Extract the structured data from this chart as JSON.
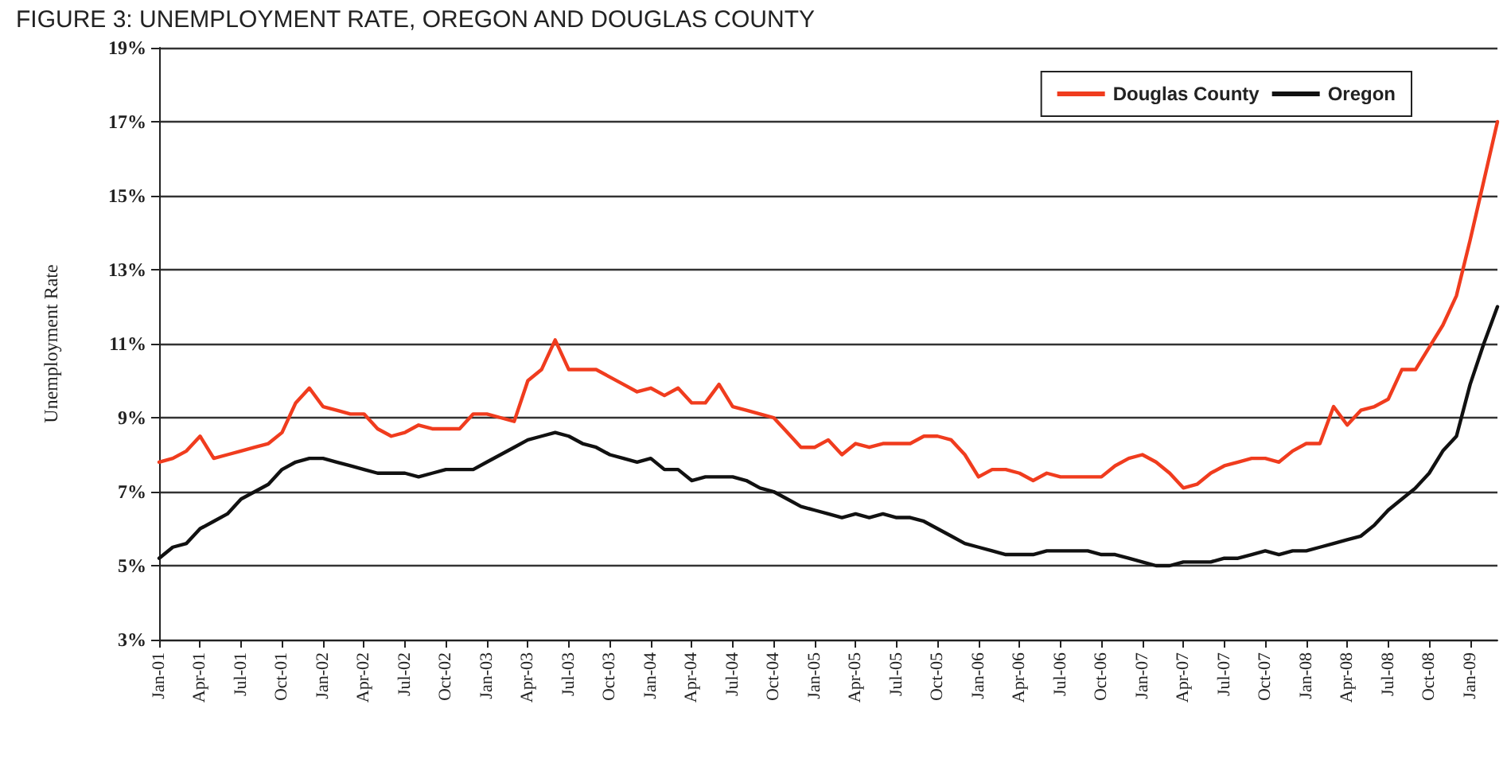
{
  "chart_data": {
    "type": "line",
    "title": "FIGURE 3: UNEMPLOYMENT RATE, OREGON AND DOUGLAS COUNTY",
    "ylabel": "Unemployment Rate",
    "categories": [
      "Jan-01",
      null,
      null,
      "Apr-01",
      null,
      null,
      "Jul-01",
      null,
      null,
      "Oct-01",
      null,
      null,
      "Jan-02",
      null,
      null,
      "Apr-02",
      null,
      null,
      "Jul-02",
      null,
      null,
      "Oct-02",
      null,
      null,
      "Jan-03",
      null,
      null,
      "Apr-03",
      null,
      null,
      "Jul-03",
      null,
      null,
      "Oct-03",
      null,
      null,
      "Jan-04",
      null,
      null,
      "Apr-04",
      null,
      null,
      "Jul-04",
      null,
      null,
      "Oct-04",
      null,
      null,
      "Jan-05",
      null,
      null,
      "Apr-05",
      null,
      null,
      "Jul-05",
      null,
      null,
      "Oct-05",
      null,
      null,
      "Jan-06",
      null,
      null,
      "Apr-06",
      null,
      null,
      "Jul-06",
      null,
      null,
      "Oct-06",
      null,
      null,
      "Jan-07",
      null,
      null,
      "Apr-07",
      null,
      null,
      "Jul-07",
      null,
      null,
      "Oct-07",
      null,
      null,
      "Jan-08",
      null,
      null,
      "Apr-08",
      null,
      null,
      "Jul-08",
      null,
      null,
      "Oct-08",
      null,
      null,
      "Jan-09",
      null,
      null
    ],
    "series": [
      {
        "name": "Douglas County",
        "color": "#f03c1e",
        "values": [
          7.8,
          7.9,
          8.1,
          8.5,
          7.9,
          8.0,
          8.1,
          8.2,
          8.3,
          8.6,
          9.4,
          9.8,
          9.3,
          9.2,
          9.1,
          9.1,
          8.7,
          8.5,
          8.6,
          8.8,
          8.7,
          8.7,
          8.7,
          9.1,
          9.1,
          9.0,
          8.9,
          10.0,
          10.3,
          11.1,
          10.3,
          10.3,
          10.3,
          10.1,
          9.9,
          9.7,
          9.8,
          9.6,
          9.8,
          9.4,
          9.4,
          9.9,
          9.3,
          9.2,
          9.1,
          9.0,
          8.6,
          8.2,
          8.2,
          8.4,
          8.0,
          8.3,
          8.2,
          8.3,
          8.3,
          8.3,
          8.5,
          8.5,
          8.4,
          8.0,
          7.4,
          7.6,
          7.6,
          7.5,
          7.3,
          7.5,
          7.4,
          7.4,
          7.4,
          7.4,
          7.7,
          7.9,
          8.0,
          7.8,
          7.5,
          7.1,
          7.2,
          7.5,
          7.7,
          7.8,
          7.9,
          7.9,
          7.8,
          8.1,
          8.3,
          8.3,
          9.3,
          8.8,
          9.2,
          9.3,
          9.5,
          10.3,
          10.3,
          10.9,
          11.5,
          12.3,
          13.8,
          15.4,
          17.0
        ]
      },
      {
        "name": "Oregon",
        "color": "#111111",
        "values": [
          5.2,
          5.5,
          5.6,
          6.0,
          6.2,
          6.4,
          6.8,
          7.0,
          7.2,
          7.6,
          7.8,
          7.9,
          7.9,
          7.8,
          7.7,
          7.6,
          7.5,
          7.5,
          7.5,
          7.4,
          7.5,
          7.6,
          7.6,
          7.6,
          7.8,
          8.0,
          8.2,
          8.4,
          8.5,
          8.6,
          8.5,
          8.3,
          8.2,
          8.0,
          7.9,
          7.8,
          7.9,
          7.6,
          7.6,
          7.3,
          7.4,
          7.4,
          7.4,
          7.3,
          7.1,
          7.0,
          6.8,
          6.6,
          6.5,
          6.4,
          6.3,
          6.4,
          6.3,
          6.4,
          6.3,
          6.3,
          6.2,
          6.0,
          5.8,
          5.6,
          5.5,
          5.4,
          5.3,
          5.3,
          5.3,
          5.4,
          5.4,
          5.4,
          5.4,
          5.3,
          5.3,
          5.2,
          5.1,
          5.0,
          5.0,
          5.1,
          5.1,
          5.1,
          5.2,
          5.2,
          5.3,
          5.4,
          5.3,
          5.4,
          5.4,
          5.5,
          5.6,
          5.7,
          5.8,
          6.1,
          6.5,
          6.8,
          7.1,
          7.5,
          8.1,
          8.5,
          9.9,
          11.0,
          12.0
        ]
      }
    ],
    "ylim": [
      3,
      19
    ],
    "yticks": [
      {
        "value": 3,
        "label": "3%"
      },
      {
        "value": 5,
        "label": "5%"
      },
      {
        "value": 7,
        "label": "7%"
      },
      {
        "value": 9,
        "label": "9%"
      },
      {
        "value": 11,
        "label": "11%"
      },
      {
        "value": 13,
        "label": "13%"
      },
      {
        "value": 15,
        "label": "15%"
      },
      {
        "value": 17,
        "label": "17%"
      },
      {
        "value": 19,
        "label": "19%"
      }
    ],
    "grid": "y",
    "legend": "top right",
    "marker": "none",
    "line_style": "solid"
  }
}
